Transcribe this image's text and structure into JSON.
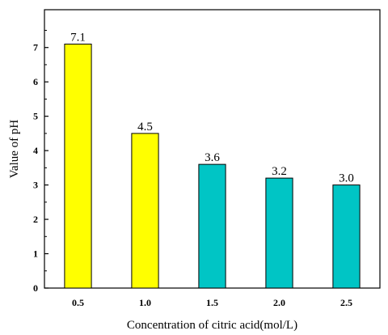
{
  "chart_data": {
    "type": "bar",
    "title": "",
    "xlabel": "Concentration of citric acid(mol/L)",
    "ylabel": "Value of pH",
    "categories": [
      "0.5",
      "1.0",
      "1.5",
      "2.0",
      "2.5"
    ],
    "values": [
      7.1,
      4.5,
      3.6,
      3.2,
      3.0
    ],
    "data_labels": [
      "7.1",
      "4.5",
      "3.6",
      "3.2",
      "3.0"
    ],
    "ylim": [
      0,
      8.1
    ],
    "yticks": [
      0,
      1,
      2,
      3,
      4,
      5,
      6,
      7
    ],
    "bar_colors": [
      "#FFFF00",
      "#FFFF00",
      "#00C5C5",
      "#00C5C5",
      "#00C5C5"
    ],
    "grid": false,
    "legend": "none"
  }
}
